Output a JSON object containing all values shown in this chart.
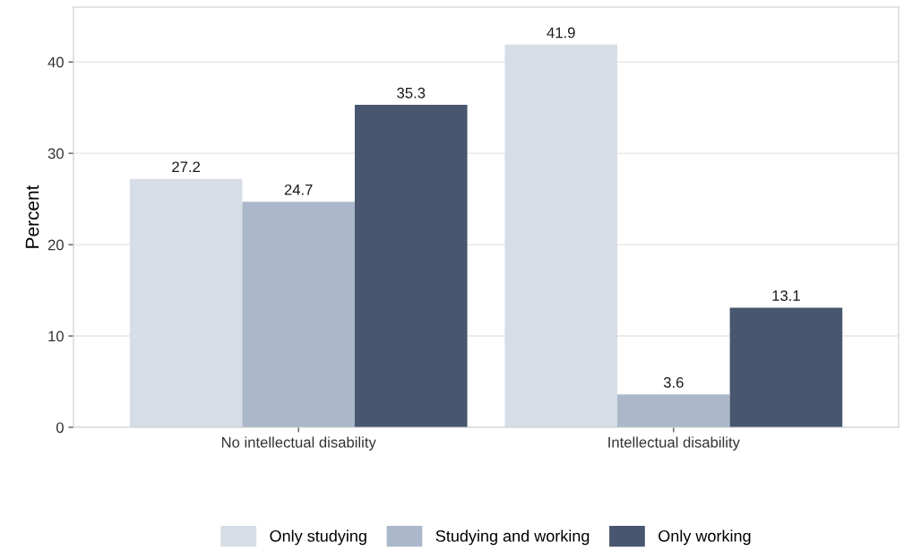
{
  "chart_data": {
    "type": "bar",
    "ylabel": "Percent",
    "categories": [
      "No intellectual disability",
      "Intellectual disability"
    ],
    "series": [
      {
        "name": "Only studying",
        "color": "#d6dde6",
        "values": [
          27.2,
          41.9
        ]
      },
      {
        "name": "Studying and working",
        "color": "#aab8ca",
        "values": [
          24.7,
          3.6
        ]
      },
      {
        "name": "Only working",
        "color": "#48566f",
        "values": [
          35.3,
          13.1
        ]
      }
    ],
    "ylim": [
      0,
      46
    ],
    "yticks": [
      0,
      10,
      20,
      30,
      40
    ],
    "grid": "y",
    "legend": "bottom",
    "data_labels": true
  }
}
